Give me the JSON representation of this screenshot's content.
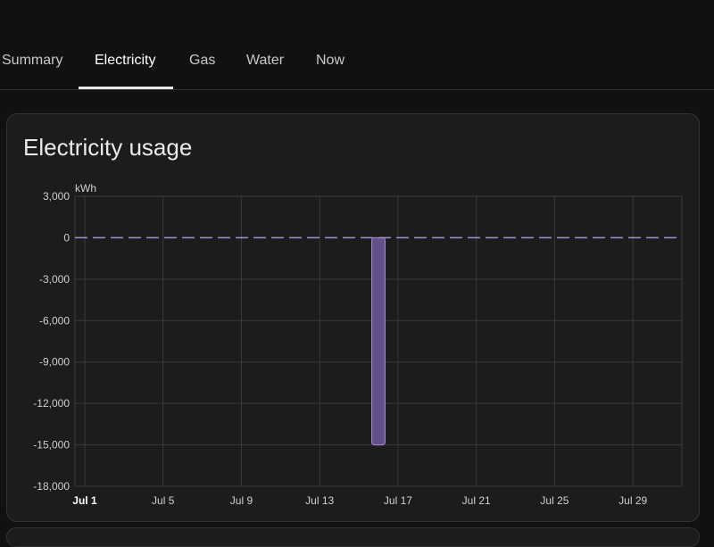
{
  "tabs": [
    {
      "label": "Summary",
      "active": false
    },
    {
      "label": "Electricity",
      "active": true
    },
    {
      "label": "Gas",
      "active": false
    },
    {
      "label": "Water",
      "active": false
    },
    {
      "label": "Now",
      "active": false
    }
  ],
  "card": {
    "title": "Electricity usage"
  },
  "colors": {
    "bar_fill": "#6f5a9c",
    "bar_stroke": "#a48fd6",
    "grid": "#3a3a3a",
    "zero_line": "#a48fd6"
  },
  "chart_data": {
    "type": "bar",
    "title": "",
    "unit": "kWh",
    "ylim": [
      -18000,
      3000
    ],
    "yticks": [
      3000,
      0,
      -3000,
      -6000,
      -9000,
      -12000,
      -15000,
      -18000
    ],
    "ytick_labels": [
      "3,000",
      "0",
      "-3,000",
      "-6,000",
      "-9,000",
      "-12,000",
      "-15,000",
      "-18,000"
    ],
    "xlim": [
      "Jul 1",
      "Jul 31"
    ],
    "xticks": [
      1,
      5,
      9,
      13,
      17,
      21,
      25,
      29
    ],
    "xtick_labels": [
      "Jul 1",
      "Jul 5",
      "Jul 9",
      "Jul 13",
      "Jul 17",
      "Jul 21",
      "Jul 25",
      "Jul 29"
    ],
    "grid": true,
    "series": [
      {
        "x": [
          "Jul 16"
        ],
        "values": [
          -15000
        ]
      }
    ]
  }
}
